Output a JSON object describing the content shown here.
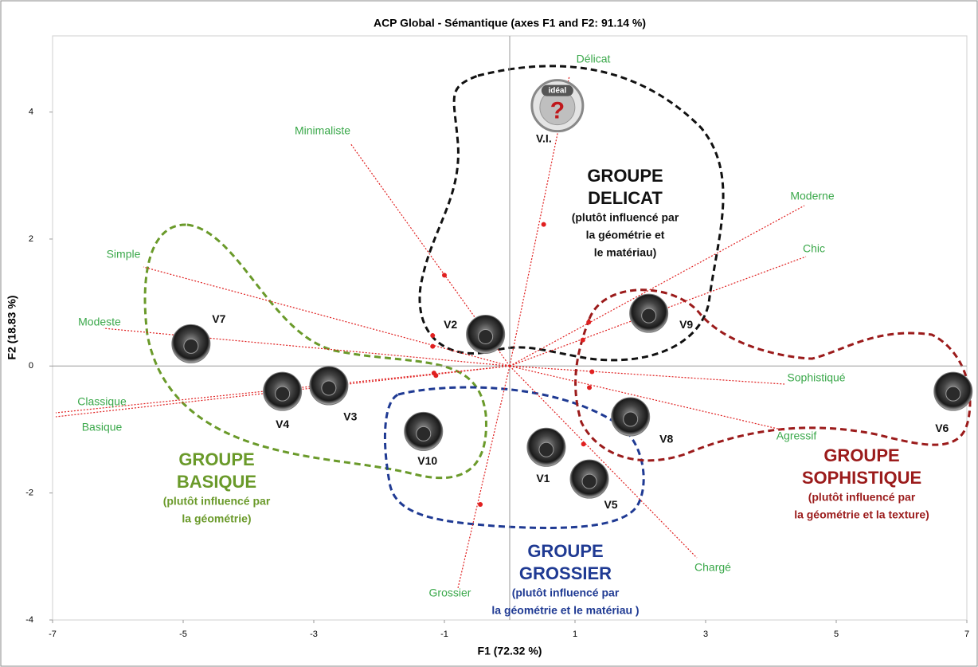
{
  "chart_data": {
    "type": "biplot",
    "title": "ACP Global - Sémantique (axes F1 and F2: 91.14 %)",
    "x_label": "F1 (72.32 %)",
    "y_label": "F2 (18.83 %)",
    "xlim": [
      -7,
      7
    ],
    "ylim": [
      -4,
      5.2
    ],
    "xticks": [
      -7,
      -5,
      -3,
      -1,
      1,
      3,
      5,
      7
    ],
    "yticks": [
      -4,
      -2,
      0,
      2,
      4
    ],
    "points": {
      "labels": [
        "V7",
        "V4",
        "V3",
        "V2",
        "V10",
        "V1",
        "V5",
        "V8",
        "V9",
        "V6",
        "V.I."
      ],
      "x": [
        -4.88,
        -3.48,
        -2.77,
        -0.37,
        -1.32,
        0.56,
        1.22,
        1.85,
        2.13,
        6.79,
        0.73
      ],
      "y": [
        0.35,
        -0.4,
        -0.31,
        0.5,
        -1.03,
        -1.28,
        -1.78,
        -0.8,
        0.83,
        -0.4,
        4.1
      ]
    },
    "ideal_icon": [
      "idéal",
      "?"
    ],
    "variables": {
      "labels": [
        "Délicat",
        "Minimaliste",
        "Moderne",
        "Chic",
        "Simple",
        "Modeste",
        "Sophistiqué",
        "Classique",
        "Basique",
        "Agressif",
        "Chargé",
        "Grossier"
      ],
      "x": [
        0.52,
        -1.0,
        1.21,
        1.12,
        -1.18,
        -1.18,
        1.26,
        -1.13,
        -1.16,
        1.22,
        1.13,
        -0.45
      ],
      "y": [
        2.23,
        1.43,
        0.69,
        0.41,
        0.48,
        0.31,
        -0.09,
        -0.15,
        -0.11,
        -0.34,
        -1.23,
        -2.18
      ],
      "color": "#e02020",
      "label_color": "#3aa84a"
    },
    "groups": [
      {
        "title": [
          "GROUPE",
          "DELICAT"
        ],
        "note": [
          "(plutôt influencé par",
          "la géométrie et",
          "le matériau)"
        ],
        "color": "#111111"
      },
      {
        "title": [
          "GROUPE",
          "BASIQUE"
        ],
        "note": [
          "(plutôt influencé par",
          "la géométrie)"
        ],
        "color": "#6a9a2a"
      },
      {
        "title": [
          "GROUPE",
          "GROSSIER"
        ],
        "note": [
          "(plutôt influencé par",
          "la géométrie et le matériau )"
        ],
        "color": "#1f3a93"
      },
      {
        "title": [
          "GROUPE",
          "SOPHISTIQUE"
        ],
        "note": [
          "(plutôt influencé par",
          "la géométrie et la texture)"
        ],
        "color": "#9b1b1b"
      }
    ]
  }
}
